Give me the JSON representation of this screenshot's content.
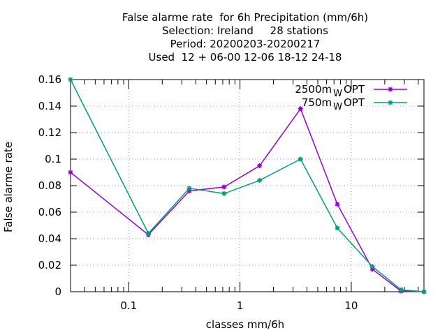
{
  "chart_data": {
    "type": "line",
    "title_lines": [
      "False alarme rate  for 6h Precipitation (mm/6h)",
      "Selection: Ireland     28 stations",
      "Period: 20200203-20200217",
      "Used  12 + 06-00 12-06 18-12 24-18"
    ],
    "xlabel": "classes mm/6h",
    "ylabel": "False alarme rate",
    "x_scale": "log",
    "xlim": [
      0.03,
      45
    ],
    "ylim": [
      0,
      0.16
    ],
    "x_ticks": [
      {
        "value": 0.1,
        "label": "0.1"
      },
      {
        "value": 1,
        "label": "1"
      },
      {
        "value": 10,
        "label": "10"
      }
    ],
    "y_ticks": [
      {
        "value": 0,
        "label": "0"
      },
      {
        "value": 0.02,
        "label": "0.02"
      },
      {
        "value": 0.04,
        "label": "0.04"
      },
      {
        "value": 0.06,
        "label": "0.06"
      },
      {
        "value": 0.08,
        "label": "0.08"
      },
      {
        "value": 0.1,
        "label": "0.1"
      },
      {
        "value": 0.12,
        "label": "0.12"
      },
      {
        "value": 0.14,
        "label": "0.14"
      },
      {
        "value": 0.16,
        "label": "0.16"
      }
    ],
    "grid": true,
    "legend_position": "top-right",
    "x": [
      0.03,
      0.15,
      0.35,
      0.72,
      1.5,
      3.5,
      7.5,
      15.5,
      28,
      45
    ],
    "series": [
      {
        "name": "2500m",
        "name_sub": "W",
        "name_suffix": "OPT",
        "color": "#9400d3",
        "values": [
          0.09,
          0.043,
          0.076,
          0.079,
          0.095,
          0.138,
          0.066,
          0.017,
          0.0005,
          0.0
        ]
      },
      {
        "name": "750m",
        "name_sub": "W",
        "name_suffix": "OPT",
        "color": "#009e73",
        "values": [
          0.16,
          0.044,
          0.078,
          0.074,
          0.084,
          0.1,
          0.048,
          0.019,
          0.0015,
          0.0
        ]
      }
    ]
  }
}
